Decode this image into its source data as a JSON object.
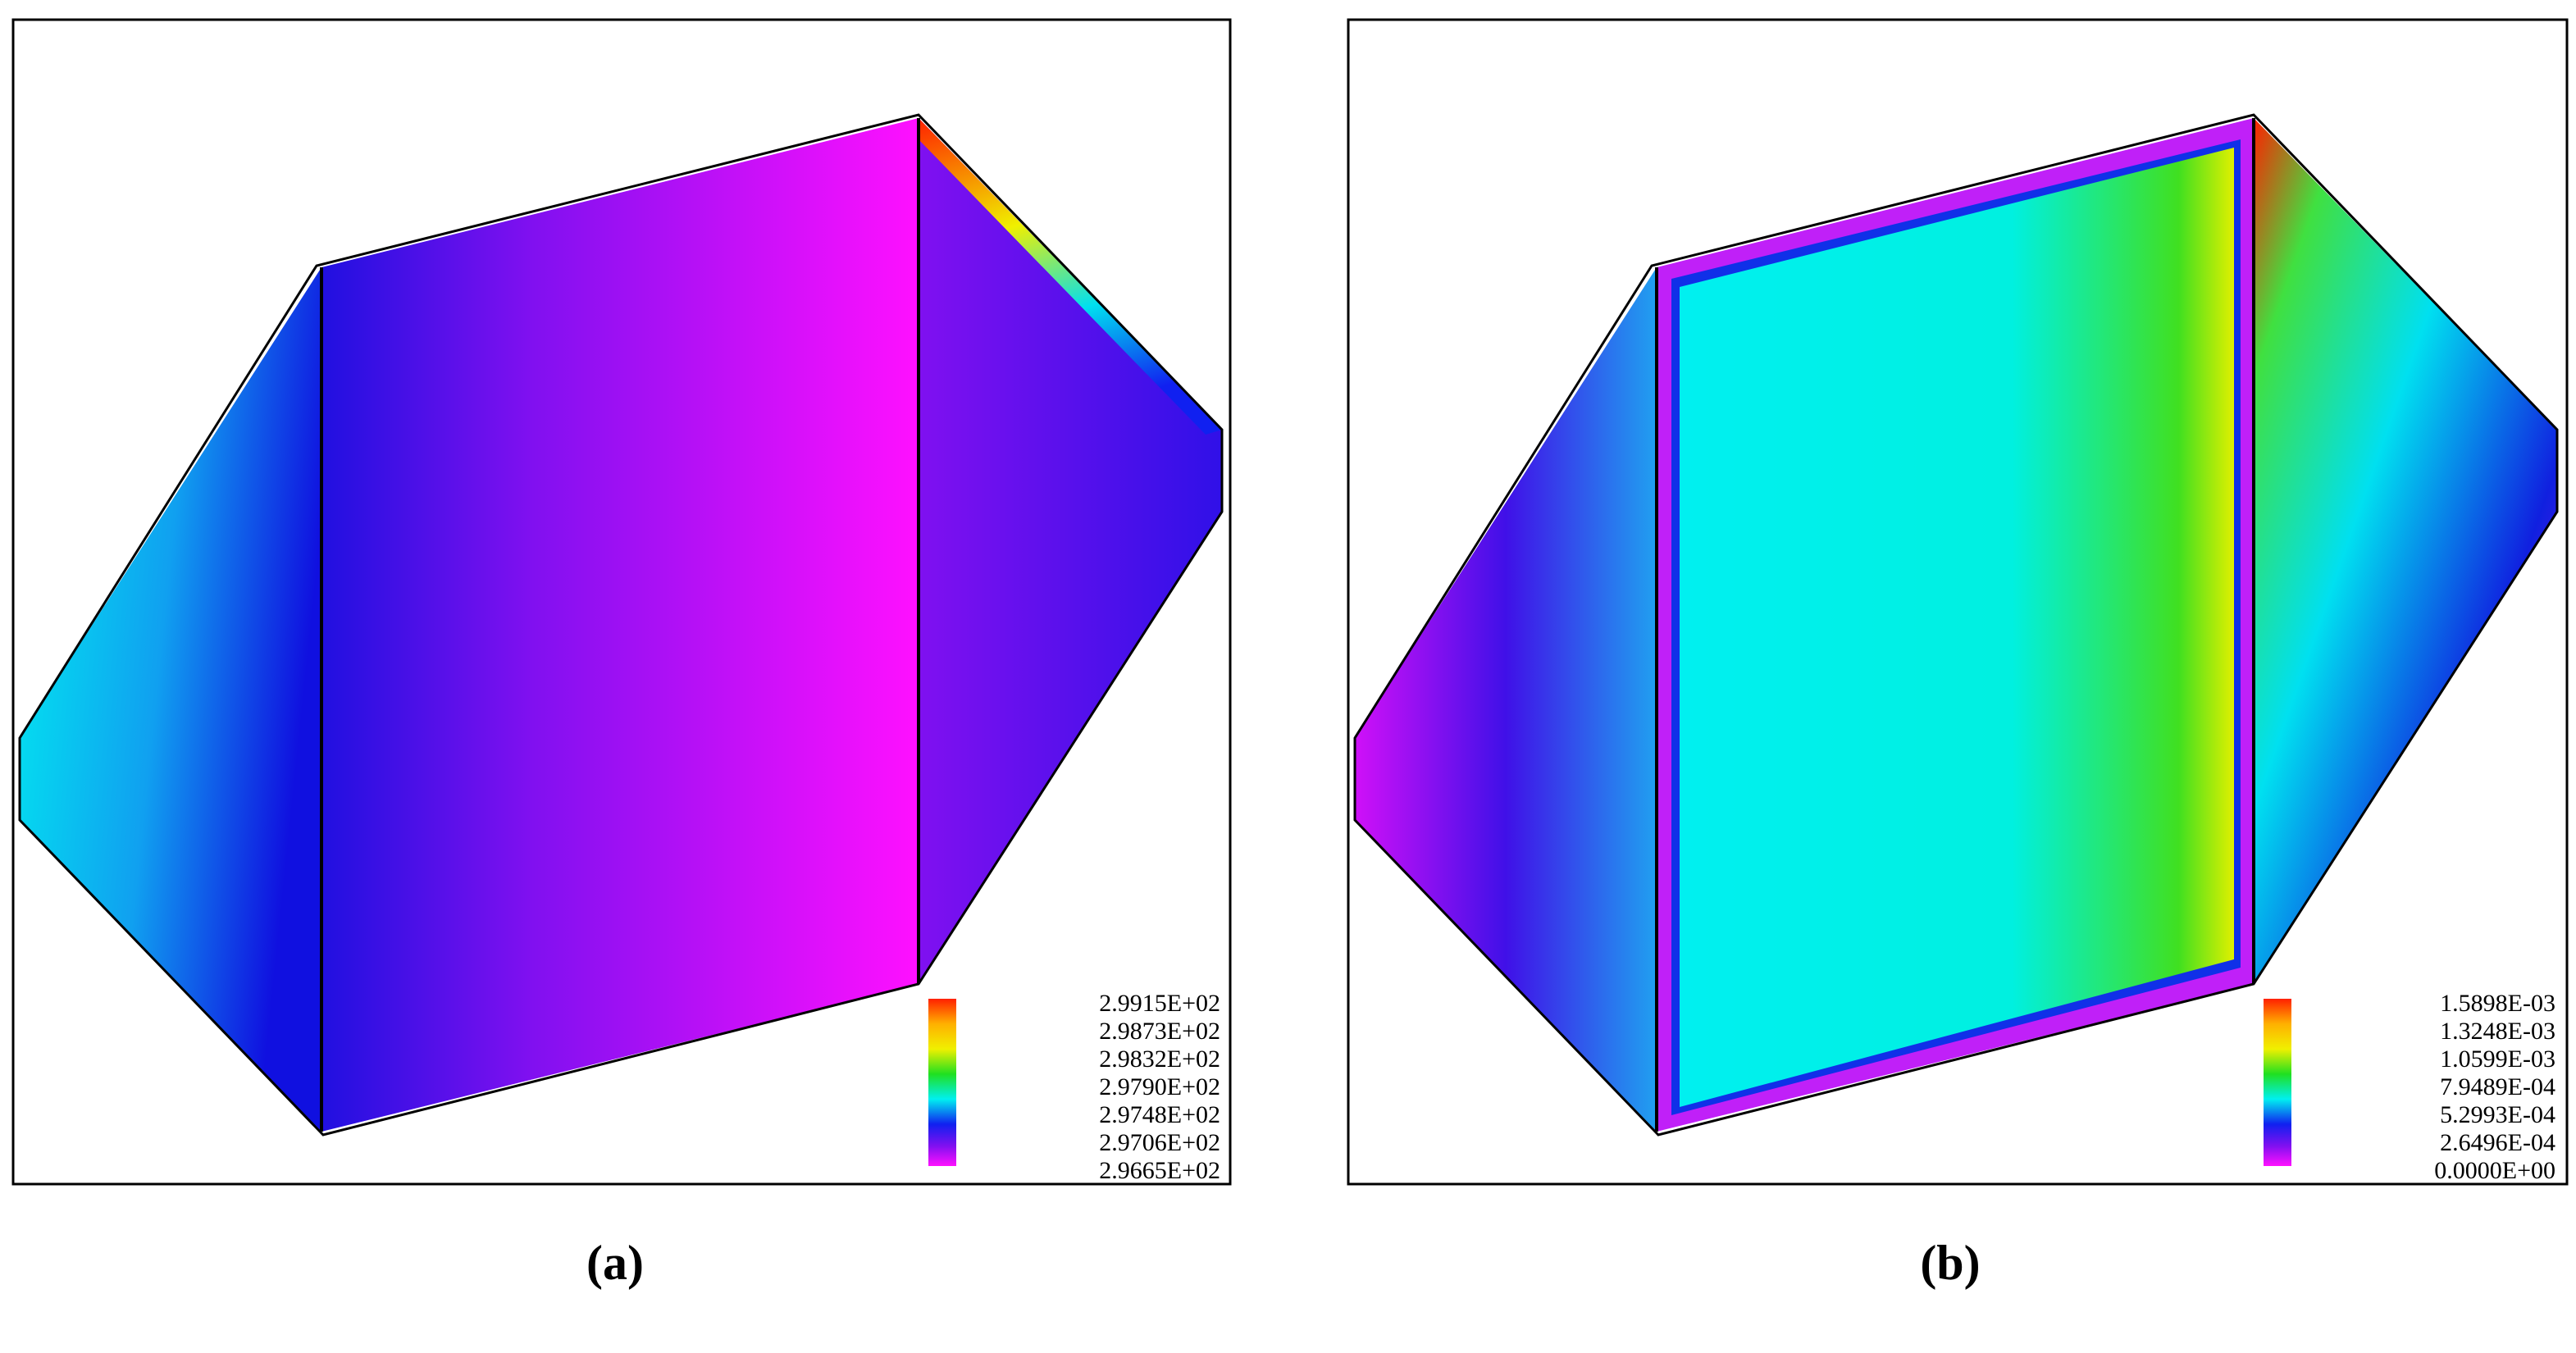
{
  "panels": [
    {
      "caption": "(a)",
      "legend_labels": [
        "2.9915E+02",
        "2.9873E+02",
        "2.9832E+02",
        "2.9790E+02",
        "2.9748E+02",
        "2.9706E+02",
        "2.9665E+02"
      ]
    },
    {
      "caption": "(b)",
      "legend_labels": [
        "1.5898E-03",
        "1.3248E-03",
        "1.0599E-03",
        "7.9489E-04",
        "5.2993E-04",
        "2.6496E-04",
        "0.0000E+00"
      ]
    }
  ]
}
